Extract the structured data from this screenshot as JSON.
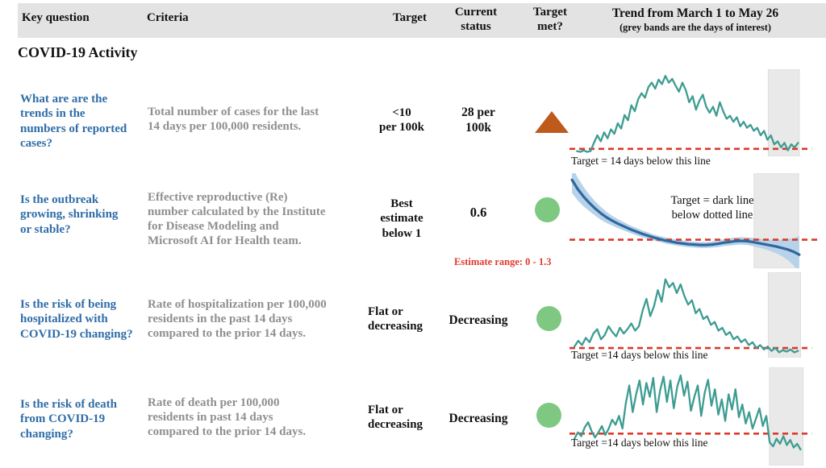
{
  "header": {
    "col_key_question": "Key question",
    "col_criteria": "Criteria",
    "col_target": "Target",
    "col_current_status": "Current\nstatus",
    "col_target_met": "Target\nmet?",
    "col_trend_title": "Trend from March 1 to May 26",
    "col_trend_subtitle": "(grey bands are the days of interest)"
  },
  "section_title": "COVID-19 Activity",
  "rows": [
    {
      "question": "What are are the\ntrends in the\nnumbers of reported\ncases?",
      "criteria": "Total number of cases for the last\n14 days per 100,000 residents.",
      "target": "<10\nper 100k",
      "status": "28 per\n100k",
      "indicator": "orange-triangle-up"
    },
    {
      "question": "Is the outbreak\ngrowing, shrinking\nor stable?",
      "criteria": "Effective reproductive (Re)\nnumber calculated by the Institute\nfor Disease Modeling and\nMicrosoft AI for Health team.",
      "target": "Best\nestimate\nbelow 1",
      "status": "0.6",
      "estimate_range": "Estimate range: 0 - 1.3",
      "indicator": "green-circle"
    },
    {
      "question": "Is the risk of being\nhospitalized with\nCOVID-19 changing?",
      "criteria": "Rate of hospitalization per 100,000\nresidents in the past 14 days\ncompared to the prior 14 days.",
      "target": "Flat or\ndecreasing",
      "status": "Decreasing",
      "indicator": "green-circle"
    },
    {
      "question": "Is the risk of death\nfrom COVID-19\nchanging?",
      "criteria": "Rate of death per 100,000\nresidents in past 14 days\ncompared to the prior 14 days.",
      "target": "Flat or\ndecreasing",
      "status": "Decreasing",
      "indicator": "green-circle"
    }
  ],
  "colors": {
    "header_band": "#e3e3e3",
    "question_blue": "#2f6da8",
    "criteria_grey": "#8f8f8f",
    "target_red_dash": "#d93a2b",
    "estimate_red": "#e0392e",
    "teal_line": "#3d9c91",
    "dark_blue_line": "#2e689e",
    "blue_band": "#b7d2e9",
    "grey_band": "#e9e9e9",
    "orange_triangle": "#bf5a1d",
    "green_circle": "#7ec881"
  },
  "chart_data": [
    {
      "type": "line",
      "title": "Daily reported cases trend, March 1 to May 26",
      "caption": "Target = 14 days below this line",
      "x_range": [
        "March 1",
        "May 26"
      ],
      "units": "relative level (target line = 0, chart top = 100)",
      "target_line_label": "target: <10 cases per 100k",
      "values": [
        -3,
        -4,
        -2,
        -4,
        -3,
        8,
        18,
        10,
        22,
        14,
        26,
        20,
        34,
        27,
        45,
        38,
        58,
        50,
        66,
        74,
        68,
        82,
        88,
        80,
        92,
        86,
        97,
        88,
        93,
        84,
        76,
        88,
        78,
        62,
        70,
        52,
        64,
        72,
        56,
        48,
        56,
        44,
        62,
        50,
        40,
        44,
        36,
        42,
        30,
        36,
        28,
        32,
        24,
        28,
        18,
        24,
        12,
        18,
        6,
        10,
        2,
        8,
        -2,
        6,
        2,
        8
      ],
      "layout": {
        "top_frac": 0.05,
        "dash_y_frac": 0.915,
        "dash_x_end": 0.975,
        "band_x": [
          0.8,
          0.925
        ],
        "x_start": 0.03,
        "x_end": 0.92,
        "target": 0,
        "vmax": 100,
        "color": "#3d9c91",
        "stroke": 2.3
      }
    },
    {
      "type": "line",
      "title": "Effective reproductive number (Re) with confidence band",
      "annotation": "Target = dark line\nbelow dotted line",
      "x_range": [
        "March 1",
        "May 26"
      ],
      "units": "Re",
      "target_line_label": "Re = 1",
      "values": [
        2.6,
        2.35,
        2.15,
        1.98,
        1.83,
        1.7,
        1.59,
        1.5,
        1.42,
        1.35,
        1.28,
        1.22,
        1.16,
        1.11,
        1.06,
        1.02,
        0.98,
        0.95,
        0.92,
        0.9,
        0.88,
        0.87,
        0.86,
        0.86,
        0.87,
        0.89,
        0.92,
        0.94,
        0.96,
        0.97,
        0.96,
        0.94,
        0.91,
        0.88,
        0.85,
        0.82,
        0.78,
        0.74,
        0.68,
        0.6
      ],
      "band_delta": [
        0.35,
        0.3,
        0.26,
        0.22,
        0.19,
        0.17,
        0.15,
        0.13,
        0.12,
        0.11,
        0.1,
        0.1,
        0.09,
        0.09,
        0.08,
        0.08,
        0.08,
        0.08,
        0.08,
        0.08,
        0.08,
        0.08,
        0.08,
        0.08,
        0.08,
        0.09,
        0.09,
        0.1,
        0.1,
        0.1,
        0.1,
        0.11,
        0.12,
        0.13,
        0.15,
        0.18,
        0.22,
        0.28,
        0.36,
        0.5
      ],
      "layout": {
        "top_frac": 0.07,
        "dash_y_frac": 0.7,
        "dash_x_end": 1.0,
        "band_x": [
          0.743,
          0.922
        ],
        "x_start": 0.01,
        "x_end": 0.925,
        "target": 1,
        "vmax": 2.6,
        "color": "#2e689e",
        "stroke": 3.2,
        "band_color": "#b7d2e9"
      }
    },
    {
      "type": "line",
      "title": "Hospitalization rate trend, March 1 to May 26",
      "caption": "Target =14 days below this line",
      "x_range": [
        "March 1",
        "May 26"
      ],
      "units": "relative level (target line = 0, chart top = 100)",
      "target_line_label": "flat-or-decreasing threshold",
      "values": [
        2,
        10,
        4,
        14,
        8,
        20,
        26,
        12,
        18,
        30,
        22,
        16,
        28,
        20,
        26,
        34,
        24,
        30,
        52,
        68,
        44,
        58,
        80,
        64,
        95,
        84,
        90,
        76,
        88,
        72,
        60,
        66,
        48,
        54,
        40,
        44,
        32,
        36,
        24,
        28,
        18,
        22,
        12,
        16,
        8,
        12,
        4,
        8,
        0,
        4,
        -2,
        2,
        -4,
        0,
        -6,
        -3,
        -5,
        -2,
        -6,
        -4
      ],
      "layout": {
        "top_frac": 0.04,
        "dash_y_frac": 0.887,
        "dash_x_end": 0.975,
        "band_x": [
          0.8,
          0.93
        ],
        "x_start": 0.02,
        "x_end": 0.92,
        "target": 0,
        "vmax": 100,
        "color": "#3d9c91",
        "stroke": 2.3
      }
    },
    {
      "type": "line",
      "title": "Death rate trend, March 1 to May 26",
      "caption": "Target =14 days below this line",
      "x_range": [
        "March 1",
        "May 26"
      ],
      "units": "relative level (target line = 0, chart top = 100)",
      "target_line_label": "flat-or-decreasing threshold",
      "values": [
        -8,
        2,
        -4,
        10,
        18,
        4,
        -6,
        2,
        12,
        -2,
        8,
        22,
        14,
        28,
        8,
        48,
        76,
        34,
        62,
        84,
        46,
        80,
        58,
        88,
        34,
        68,
        90,
        50,
        84,
        40,
        74,
        92,
        60,
        82,
        36,
        58,
        76,
        28,
        64,
        85,
        44,
        70,
        30,
        54,
        20,
        62,
        38,
        70,
        26,
        46,
        16,
        34,
        8,
        24,
        40,
        12,
        28,
        -14,
        -20,
        -8,
        -16,
        -4,
        -18,
        -10,
        -22,
        -16,
        -25
      ],
      "layout": {
        "top_frac": 0.03,
        "dash_y_frac": 0.675,
        "dash_x_end": 0.975,
        "band_x": [
          0.805,
          0.94
        ],
        "x_start": 0.02,
        "x_end": 0.93,
        "target": 0,
        "vmax": 100,
        "color": "#3d9c91",
        "stroke": 2.3
      }
    }
  ]
}
